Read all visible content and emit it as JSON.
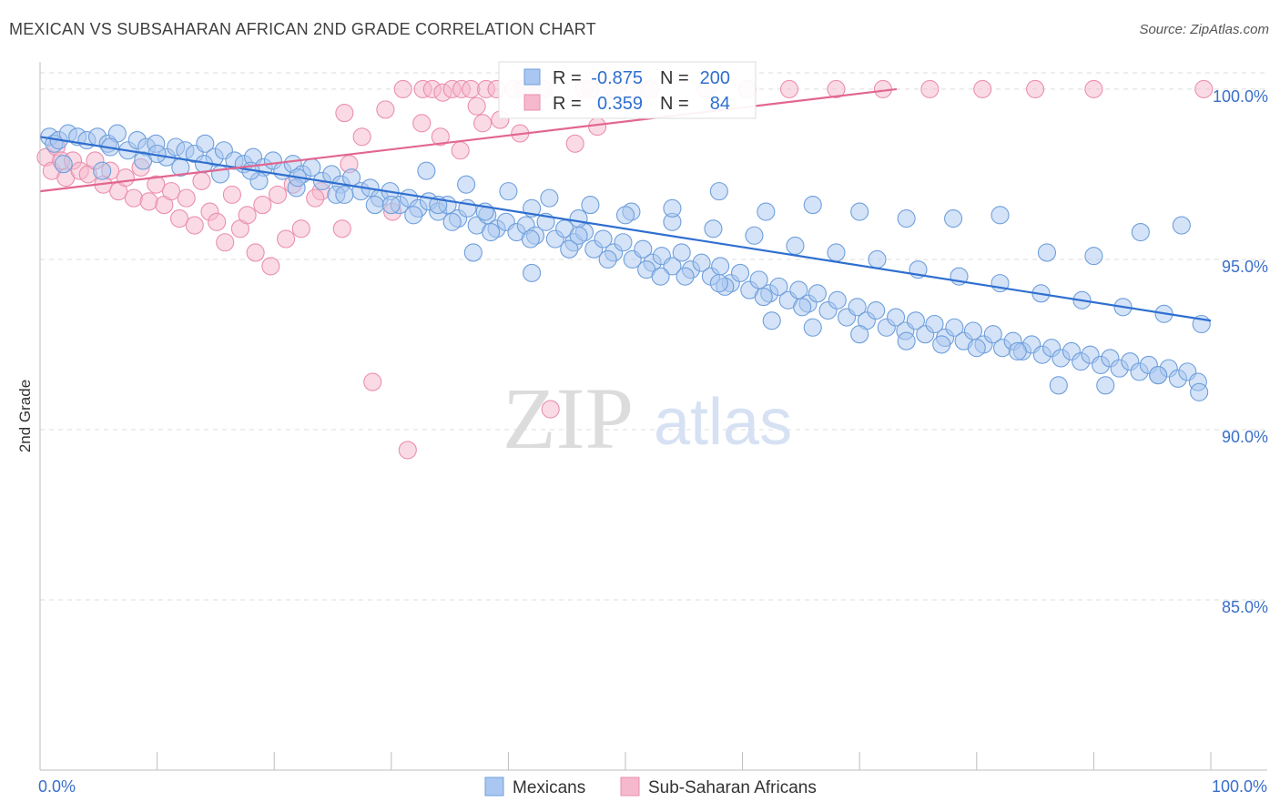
{
  "header": {
    "title": "MEXICAN VS SUBSAHARAN AFRICAN 2ND GRADE CORRELATION CHART",
    "source": "Source: ZipAtlas.com"
  },
  "watermark": {
    "zip": "ZIP",
    "atlas": "atlas"
  },
  "colors": {
    "blue_fill": "#a9c7f0",
    "blue_stroke": "#6f9fdc",
    "blue_line": "#2f6fd0",
    "pink_fill": "#f6b8cc",
    "pink_stroke": "#eb8fad",
    "pink_line": "#e26690",
    "value_text": "#2f6fd0",
    "grid": "#dddddd"
  },
  "legend": {
    "rows": [
      {
        "r_label": "R =",
        "r_value": "-0.875",
        "n_label": "N =",
        "n_value": "200"
      },
      {
        "r_label": "R =",
        "r_value": "0.359",
        "n_label": "N =",
        "n_value": "84"
      }
    ]
  },
  "chart_data": {
    "type": "scatter",
    "title": "MEXICAN VS SUBSAHARAN AFRICAN 2ND GRADE CORRELATION CHART",
    "xlabel": "",
    "ylabel": "2nd Grade",
    "xlim": [
      0,
      100
    ],
    "ylim": [
      80.0,
      100.8
    ],
    "x_tick_labels": [
      "0.0%",
      "100.0%"
    ],
    "y_ticks": [
      85.0,
      90.0,
      95.0,
      100.0
    ],
    "y_tick_labels": [
      "85.0%",
      "90.0%",
      "95.0%",
      "100.0%"
    ],
    "grid": true,
    "legend_position": "top-center",
    "series": [
      {
        "name": "Mexicans",
        "color": "#a9c7f0",
        "r": -0.875,
        "n": 200,
        "trend": {
          "x": [
            0,
            100
          ],
          "y": [
            98.6,
            93.2
          ]
        },
        "points": [
          [
            0.8,
            98.6
          ],
          [
            1.2,
            98.4
          ],
          [
            1.6,
            98.5
          ],
          [
            2.4,
            98.7
          ],
          [
            3.2,
            98.6
          ],
          [
            4.0,
            98.5
          ],
          [
            4.9,
            98.6
          ],
          [
            5.8,
            98.4
          ],
          [
            6.6,
            98.7
          ],
          [
            7.5,
            98.2
          ],
          [
            8.3,
            98.5
          ],
          [
            9.1,
            98.3
          ],
          [
            9.9,
            98.4
          ],
          [
            10.8,
            98.0
          ],
          [
            11.6,
            98.3
          ],
          [
            12.4,
            98.2
          ],
          [
            13.2,
            98.1
          ],
          [
            14.1,
            98.4
          ],
          [
            14.9,
            98.0
          ],
          [
            15.7,
            98.2
          ],
          [
            16.6,
            97.9
          ],
          [
            17.4,
            97.8
          ],
          [
            18.2,
            98.0
          ],
          [
            19.1,
            97.7
          ],
          [
            19.9,
            97.9
          ],
          [
            20.7,
            97.6
          ],
          [
            21.6,
            97.8
          ],
          [
            22.4,
            97.5
          ],
          [
            23.2,
            97.7
          ],
          [
            24.1,
            97.3
          ],
          [
            24.9,
            97.5
          ],
          [
            25.7,
            97.2
          ],
          [
            26.6,
            97.4
          ],
          [
            27.4,
            97.0
          ],
          [
            28.2,
            97.1
          ],
          [
            29.0,
            96.8
          ],
          [
            29.9,
            97.0
          ],
          [
            30.7,
            96.6
          ],
          [
            31.5,
            96.8
          ],
          [
            32.3,
            96.5
          ],
          [
            33.2,
            96.7
          ],
          [
            34.0,
            96.4
          ],
          [
            34.8,
            96.6
          ],
          [
            35.7,
            96.2
          ],
          [
            36.5,
            96.5
          ],
          [
            37.3,
            96.0
          ],
          [
            38.2,
            96.3
          ],
          [
            39.0,
            95.9
          ],
          [
            39.8,
            96.1
          ],
          [
            40.7,
            95.8
          ],
          [
            41.5,
            96.0
          ],
          [
            42.3,
            95.7
          ],
          [
            43.2,
            96.1
          ],
          [
            44.0,
            95.6
          ],
          [
            44.8,
            95.9
          ],
          [
            45.6,
            95.5
          ],
          [
            46.5,
            95.8
          ],
          [
            47.3,
            95.3
          ],
          [
            48.1,
            95.6
          ],
          [
            49.0,
            95.2
          ],
          [
            49.8,
            95.5
          ],
          [
            50.6,
            95.0
          ],
          [
            51.5,
            95.3
          ],
          [
            52.3,
            94.9
          ],
          [
            53.1,
            95.1
          ],
          [
            54.0,
            94.8
          ],
          [
            54.8,
            95.2
          ],
          [
            55.6,
            94.7
          ],
          [
            56.5,
            94.9
          ],
          [
            57.3,
            94.5
          ],
          [
            58.1,
            94.8
          ],
          [
            59.0,
            94.3
          ],
          [
            59.8,
            94.6
          ],
          [
            60.6,
            94.1
          ],
          [
            61.4,
            94.4
          ],
          [
            62.3,
            94.0
          ],
          [
            63.1,
            94.2
          ],
          [
            63.9,
            93.8
          ],
          [
            64.8,
            94.1
          ],
          [
            65.6,
            93.7
          ],
          [
            66.4,
            94.0
          ],
          [
            67.3,
            93.5
          ],
          [
            68.1,
            93.8
          ],
          [
            68.9,
            93.3
          ],
          [
            69.8,
            93.6
          ],
          [
            70.6,
            93.2
          ],
          [
            71.4,
            93.5
          ],
          [
            72.3,
            93.0
          ],
          [
            73.1,
            93.3
          ],
          [
            73.9,
            92.9
          ],
          [
            74.8,
            93.2
          ],
          [
            75.6,
            92.8
          ],
          [
            76.4,
            93.1
          ],
          [
            77.3,
            92.7
          ],
          [
            78.1,
            93.0
          ],
          [
            78.9,
            92.6
          ],
          [
            79.7,
            92.9
          ],
          [
            80.6,
            92.5
          ],
          [
            81.4,
            92.8
          ],
          [
            82.2,
            92.4
          ],
          [
            83.1,
            92.6
          ],
          [
            83.9,
            92.3
          ],
          [
            84.7,
            92.5
          ],
          [
            85.6,
            92.2
          ],
          [
            86.4,
            92.4
          ],
          [
            87.2,
            92.1
          ],
          [
            88.1,
            92.3
          ],
          [
            88.9,
            92.0
          ],
          [
            89.7,
            92.2
          ],
          [
            90.6,
            91.9
          ],
          [
            91.4,
            92.1
          ],
          [
            92.2,
            91.8
          ],
          [
            93.1,
            92.0
          ],
          [
            93.9,
            91.7
          ],
          [
            94.7,
            91.9
          ],
          [
            95.5,
            91.6
          ],
          [
            96.4,
            91.8
          ],
          [
            97.2,
            91.5
          ],
          [
            98.0,
            91.7
          ],
          [
            98.9,
            91.4
          ],
          [
            2.0,
            97.8
          ],
          [
            5.3,
            97.6
          ],
          [
            8.8,
            97.9
          ],
          [
            12.0,
            97.7
          ],
          [
            15.4,
            97.5
          ],
          [
            18.7,
            97.3
          ],
          [
            21.9,
            97.1
          ],
          [
            25.3,
            96.9
          ],
          [
            28.6,
            96.6
          ],
          [
            31.9,
            96.3
          ],
          [
            35.2,
            96.1
          ],
          [
            38.5,
            95.8
          ],
          [
            41.9,
            95.6
          ],
          [
            45.2,
            95.3
          ],
          [
            48.5,
            95.0
          ],
          [
            51.8,
            94.7
          ],
          [
            55.1,
            94.5
          ],
          [
            58.5,
            94.2
          ],
          [
            61.8,
            93.9
          ],
          [
            65.1,
            93.6
          ],
          [
            33.0,
            97.6
          ],
          [
            36.4,
            97.2
          ],
          [
            40.0,
            97.0
          ],
          [
            43.5,
            96.8
          ],
          [
            47.0,
            96.6
          ],
          [
            50.5,
            96.4
          ],
          [
            54.0,
            96.1
          ],
          [
            57.5,
            95.9
          ],
          [
            61.0,
            95.7
          ],
          [
            64.5,
            95.4
          ],
          [
            68.0,
            95.2
          ],
          [
            71.5,
            95.0
          ],
          [
            75.0,
            94.7
          ],
          [
            78.5,
            94.5
          ],
          [
            82.0,
            94.3
          ],
          [
            85.5,
            94.0
          ],
          [
            89.0,
            93.8
          ],
          [
            92.5,
            93.6
          ],
          [
            96.0,
            93.4
          ],
          [
            99.2,
            93.1
          ],
          [
            37.0,
            95.2
          ],
          [
            42.0,
            94.6
          ],
          [
            46.0,
            95.7
          ],
          [
            53.0,
            94.5
          ],
          [
            58.0,
            94.3
          ],
          [
            62.5,
            93.2
          ],
          [
            66.0,
            93.0
          ],
          [
            70.0,
            92.8
          ],
          [
            74.0,
            92.6
          ],
          [
            77.0,
            92.5
          ],
          [
            80.0,
            92.4
          ],
          [
            83.5,
            92.3
          ],
          [
            87.0,
            91.3
          ],
          [
            91.0,
            91.3
          ],
          [
            95.5,
            91.6
          ],
          [
            99.0,
            91.1
          ],
          [
            97.5,
            96.0
          ],
          [
            94.0,
            95.8
          ],
          [
            90.0,
            95.1
          ],
          [
            86.0,
            95.2
          ],
          [
            82.0,
            96.3
          ],
          [
            78.0,
            96.2
          ],
          [
            74.0,
            96.2
          ],
          [
            70.0,
            96.4
          ],
          [
            66.0,
            96.6
          ],
          [
            62.0,
            96.4
          ],
          [
            58.0,
            97.0
          ],
          [
            54.0,
            96.5
          ],
          [
            50.0,
            96.3
          ],
          [
            46.0,
            96.2
          ],
          [
            42.0,
            96.5
          ],
          [
            38.0,
            96.4
          ],
          [
            34.0,
            96.6
          ],
          [
            30.0,
            96.6
          ],
          [
            26.0,
            96.9
          ],
          [
            22.0,
            97.4
          ],
          [
            18.0,
            97.6
          ],
          [
            14.0,
            97.8
          ],
          [
            10.0,
            98.1
          ],
          [
            6.0,
            98.3
          ]
        ]
      },
      {
        "name": "Sub-Saharan Africans",
        "color": "#f6b8cc",
        "r": 0.359,
        "n": 84,
        "trend": {
          "x": [
            0,
            100
          ],
          "y": [
            97.0,
            101.1
          ]
        },
        "points": [
          [
            0.5,
            98.0
          ],
          [
            1.0,
            97.6
          ],
          [
            1.4,
            98.3
          ],
          [
            1.8,
            97.9
          ],
          [
            2.2,
            97.4
          ],
          [
            2.8,
            97.9
          ],
          [
            3.4,
            97.6
          ],
          [
            4.1,
            97.5
          ],
          [
            4.7,
            97.9
          ],
          [
            5.4,
            97.2
          ],
          [
            6.0,
            97.6
          ],
          [
            6.7,
            97.0
          ],
          [
            7.3,
            97.4
          ],
          [
            8.0,
            96.8
          ],
          [
            8.6,
            97.7
          ],
          [
            9.3,
            96.7
          ],
          [
            9.9,
            97.2
          ],
          [
            10.6,
            96.6
          ],
          [
            11.2,
            97.0
          ],
          [
            11.9,
            96.2
          ],
          [
            12.5,
            96.8
          ],
          [
            13.2,
            96.0
          ],
          [
            13.8,
            97.3
          ],
          [
            14.5,
            96.4
          ],
          [
            15.1,
            96.1
          ],
          [
            15.8,
            95.5
          ],
          [
            16.4,
            96.9
          ],
          [
            17.1,
            95.9
          ],
          [
            17.7,
            96.3
          ],
          [
            18.4,
            95.2
          ],
          [
            19.0,
            96.6
          ],
          [
            19.7,
            94.8
          ],
          [
            20.3,
            96.9
          ],
          [
            21.0,
            95.6
          ],
          [
            21.6,
            97.2
          ],
          [
            22.3,
            95.9
          ],
          [
            24.0,
            97.0
          ],
          [
            25.8,
            95.9
          ],
          [
            26.4,
            97.8
          ],
          [
            28.4,
            91.4
          ],
          [
            30.1,
            96.4
          ],
          [
            31.0,
            100.0
          ],
          [
            32.7,
            100.0
          ],
          [
            33.5,
            100.0
          ],
          [
            34.4,
            99.9
          ],
          [
            35.2,
            100.0
          ],
          [
            36.0,
            100.0
          ],
          [
            36.8,
            100.0
          ],
          [
            37.3,
            99.5
          ],
          [
            38.1,
            100.0
          ],
          [
            39.0,
            100.0
          ],
          [
            40.5,
            100.0
          ],
          [
            41.3,
            100.0
          ],
          [
            42.1,
            100.0
          ],
          [
            43.0,
            100.0
          ],
          [
            46.5,
            100.0
          ],
          [
            47.0,
            100.0
          ],
          [
            49.0,
            100.0
          ],
          [
            50.7,
            100.0
          ],
          [
            52.1,
            100.0
          ],
          [
            56.9,
            100.0
          ],
          [
            60.4,
            100.0
          ],
          [
            64.0,
            100.0
          ],
          [
            68.0,
            100.0
          ],
          [
            72.0,
            100.0
          ],
          [
            76.0,
            100.0
          ],
          [
            80.5,
            100.0
          ],
          [
            85.0,
            100.0
          ],
          [
            90.0,
            100.0
          ],
          [
            99.4,
            100.0
          ],
          [
            23.5,
            96.8
          ],
          [
            26.0,
            99.3
          ],
          [
            27.5,
            98.6
          ],
          [
            29.5,
            99.4
          ],
          [
            31.4,
            89.4
          ],
          [
            32.6,
            99.0
          ],
          [
            34.2,
            98.6
          ],
          [
            35.9,
            98.2
          ],
          [
            37.8,
            99.0
          ],
          [
            39.3,
            99.1
          ],
          [
            41.0,
            98.7
          ],
          [
            43.6,
            90.6
          ],
          [
            45.7,
            98.4
          ],
          [
            47.6,
            98.9
          ]
        ]
      }
    ]
  },
  "bottom_legend": {
    "items": [
      {
        "label": "Mexicans"
      },
      {
        "label": "Sub-Saharan Africans"
      }
    ]
  }
}
